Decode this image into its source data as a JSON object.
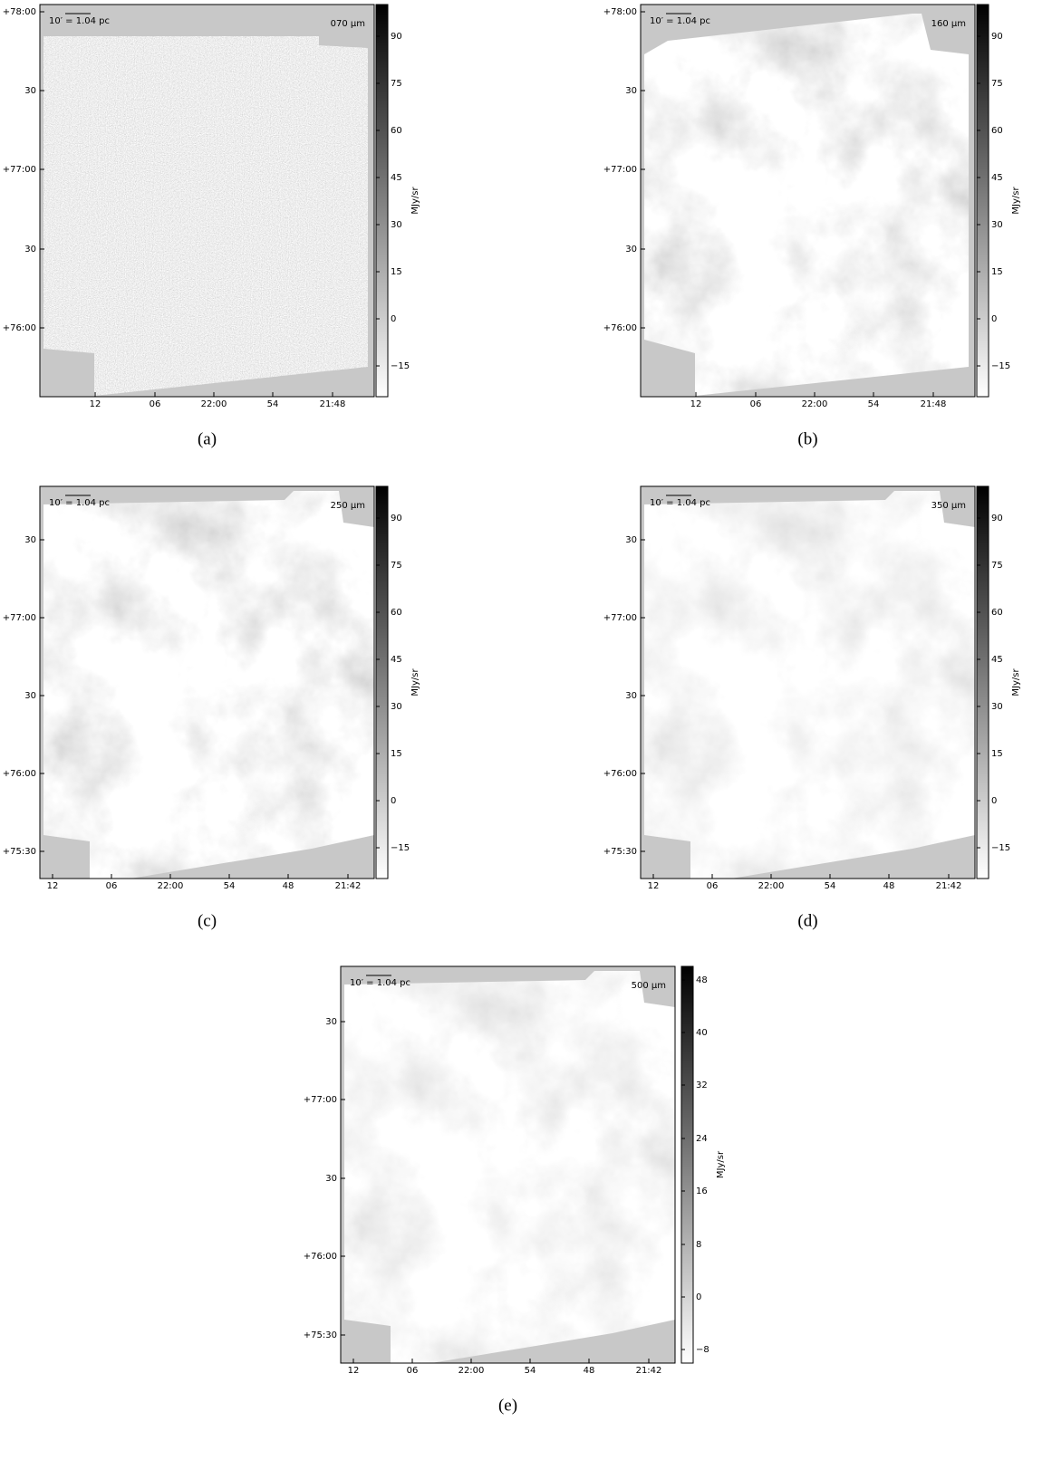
{
  "panels": [
    {
      "caption": "(a)",
      "wavelength": "070 μm",
      "scalebar": "10′ = 1.04 pc",
      "y_ticks": [
        "+78:00",
        "30",
        "+77:00",
        "30",
        "+76:00"
      ],
      "x_ticks": [
        "12",
        "06",
        "22:00",
        "54",
        "21:48"
      ],
      "colorbar": {
        "label": "MJy/sr",
        "ticks": [
          "90",
          "75",
          "60",
          "45",
          "30",
          "15",
          "0",
          "−15"
        ]
      }
    },
    {
      "caption": "(b)",
      "wavelength": "160 μm",
      "scalebar": "10′ = 1.04 pc",
      "y_ticks": [
        "+78:00",
        "30",
        "+77:00",
        "30",
        "+76:00"
      ],
      "x_ticks": [
        "12",
        "06",
        "22:00",
        "54",
        "21:48"
      ],
      "colorbar": {
        "label": "MJy/sr",
        "ticks": [
          "90",
          "75",
          "60",
          "45",
          "30",
          "15",
          "0",
          "−15"
        ]
      }
    },
    {
      "caption": "(c)",
      "wavelength": "250 μm",
      "scalebar": "10′ = 1.04 pc",
      "y_ticks": [
        "30",
        "+77:00",
        "30",
        "+76:00",
        "+75:30"
      ],
      "x_ticks": [
        "12",
        "06",
        "22:00",
        "54",
        "48",
        "21:42"
      ],
      "colorbar": {
        "label": "MJy/sr",
        "ticks": [
          "90",
          "75",
          "60",
          "45",
          "30",
          "15",
          "0",
          "−15"
        ]
      }
    },
    {
      "caption": "(d)",
      "wavelength": "350 μm",
      "scalebar": "10′ = 1.04 pc",
      "y_ticks": [
        "30",
        "+77:00",
        "30",
        "+76:00",
        "+75:30"
      ],
      "x_ticks": [
        "12",
        "06",
        "22:00",
        "54",
        "48",
        "21:42"
      ],
      "colorbar": {
        "label": "MJy/sr",
        "ticks": [
          "90",
          "75",
          "60",
          "45",
          "30",
          "15",
          "0",
          "−15"
        ]
      }
    },
    {
      "caption": "(e)",
      "wavelength": "500 μm",
      "scalebar": "10′ = 1.04 pc",
      "y_ticks": [
        "30",
        "+77:00",
        "30",
        "+76:00",
        "+75:30"
      ],
      "x_ticks": [
        "12",
        "06",
        "22:00",
        "54",
        "48",
        "21:42"
      ],
      "colorbar": {
        "label": "MJy/sr",
        "ticks": [
          "48",
          "40",
          "32",
          "24",
          "16",
          "8",
          "0",
          "−8"
        ]
      }
    }
  ]
}
